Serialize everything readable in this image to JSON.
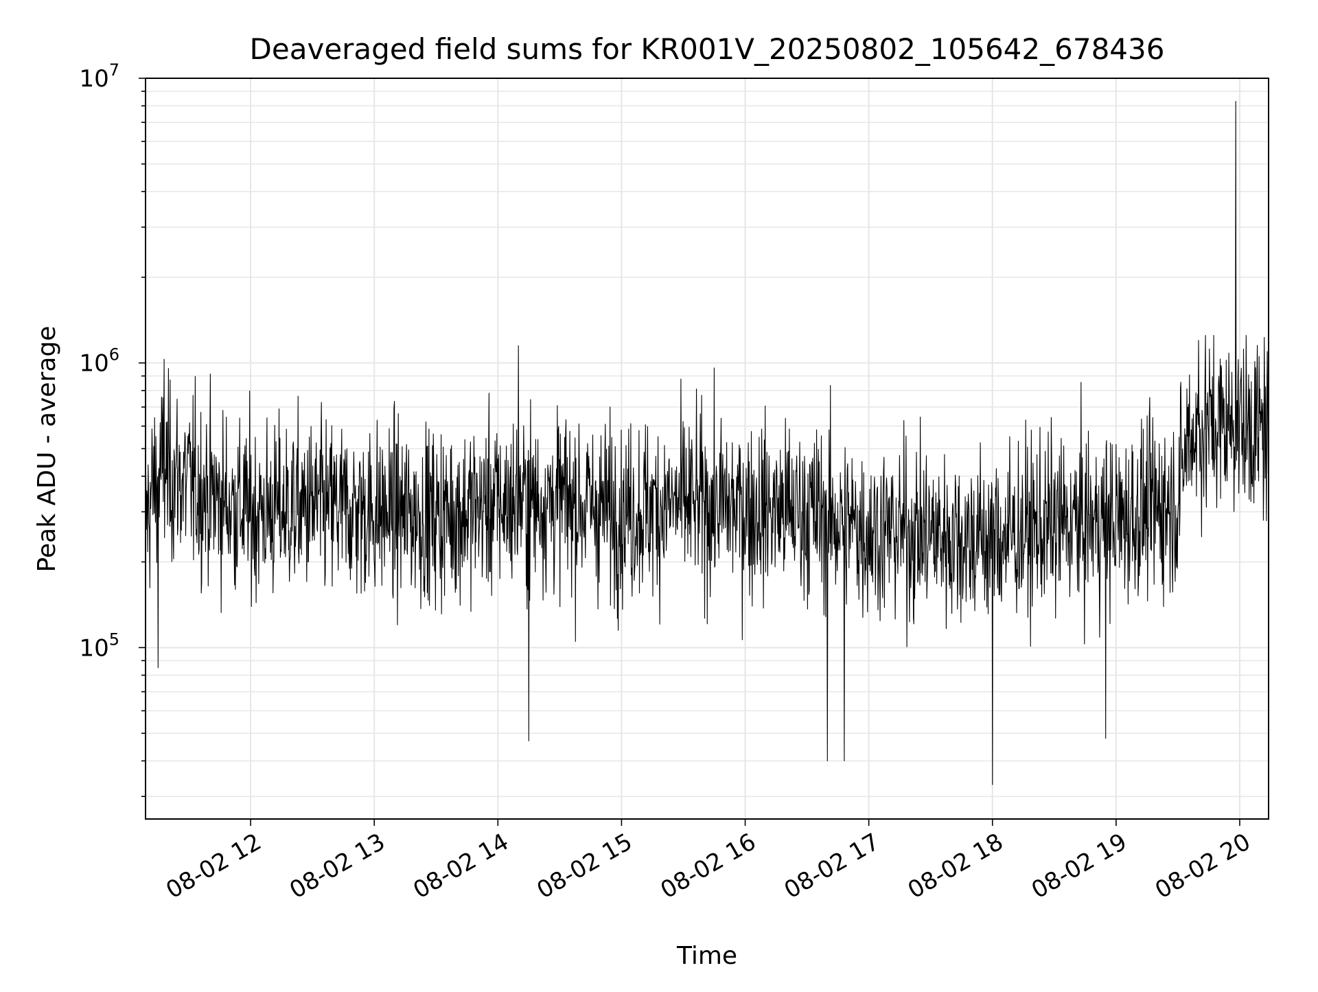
{
  "chart_data": {
    "type": "line",
    "title": "Deaveraged field sums for KR001V_20250802_105642_678436",
    "xlabel": "Time",
    "ylabel": "Peak ADU - average",
    "y_scale": "log",
    "ylim": [
      25000,
      10000000
    ],
    "xlim": [
      "08-02 11:09",
      "08-02 20:14"
    ],
    "x_ticks": [
      "08-02 12",
      "08-02 13",
      "08-02 14",
      "08-02 15",
      "08-02 16",
      "08-02 17",
      "08-02 18",
      "08-02 19",
      "08-02 20"
    ],
    "y_ticks": [
      {
        "base": "10",
        "exp": "5",
        "value": 100000
      },
      {
        "base": "10",
        "exp": "6",
        "value": 1000000
      },
      {
        "base": "10",
        "exp": "7",
        "value": 10000000
      }
    ],
    "grid": true,
    "line_color": "#000000",
    "grid_color": "#e6e6e6",
    "series": [
      {
        "x": [
          "08-02 11:09",
          "08-02 11:15",
          "08-02 11:30",
          "08-02 11:45",
          "08-02 12:00",
          "08-02 12:30",
          "08-02 13:00",
          "08-02 13:30",
          "08-02 14:00",
          "08-02 14:30",
          "08-02 15:00",
          "08-02 15:30",
          "08-02 16:00",
          "08-02 16:30",
          "08-02 17:00",
          "08-02 17:30",
          "08-02 18:00",
          "08-02 18:30",
          "08-02 19:00",
          "08-02 19:30",
          "08-02 19:35",
          "08-02 19:45",
          "08-02 20:00",
          "08-02 20:14"
        ],
        "y": [
          280000,
          420000,
          380000,
          330000,
          300000,
          310000,
          300000,
          290000,
          320000,
          330000,
          300000,
          320000,
          310000,
          300000,
          260000,
          250000,
          240000,
          270000,
          280000,
          330000,
          560000,
          600000,
          620000,
          560000
        ]
      }
    ],
    "extremes": [
      {
        "x": "08-02 11:15",
        "y": 85000
      },
      {
        "x": "08-02 11:18",
        "y": 1030000
      },
      {
        "x": "08-02 14:10",
        "y": 1150000
      },
      {
        "x": "08-02 14:15",
        "y": 47000
      },
      {
        "x": "08-02 16:40",
        "y": 40000
      },
      {
        "x": "08-02 16:48",
        "y": 40000
      },
      {
        "x": "08-02 18:00",
        "y": 33000
      },
      {
        "x": "08-02 18:55",
        "y": 48000
      },
      {
        "x": "08-02 19:40",
        "y": 1200000
      },
      {
        "x": "08-02 19:58",
        "y": 8300000
      },
      {
        "x": "08-02 20:12",
        "y": 1230000
      }
    ]
  }
}
